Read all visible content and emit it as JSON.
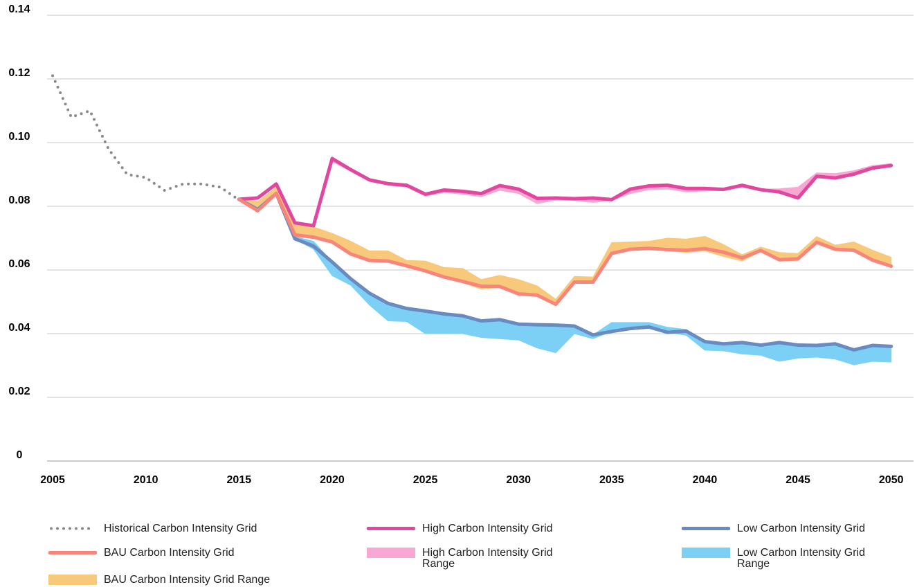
{
  "chart_data": {
    "type": "line",
    "x": [
      2015,
      2016,
      2017,
      2018,
      2019,
      2020,
      2021,
      2022,
      2023,
      2024,
      2025,
      2026,
      2027,
      2028,
      2029,
      2030,
      2031,
      2032,
      2033,
      2034,
      2035,
      2036,
      2037,
      2038,
      2039,
      2040,
      2041,
      2042,
      2043,
      2044,
      2045,
      2046,
      2047,
      2048,
      2049,
      2050
    ],
    "xlim": [
      2004.7,
      2051.2
    ],
    "xticks": [
      2005,
      2010,
      2015,
      2020,
      2025,
      2030,
      2035,
      2040,
      2045,
      2050
    ],
    "ylim": [
      0,
      0.14
    ],
    "yticks": [
      0,
      0.02,
      0.04,
      0.06,
      0.08,
      {
        "value": 0.1,
        "label": "0.10"
      },
      0.12,
      0.14
    ],
    "grid": true,
    "series": [
      {
        "name": "Historical Carbon Intensity Grid",
        "color": "#8a8a8a",
        "style": "dotted",
        "x": [
          2005,
          2006,
          2007,
          2008,
          2009,
          2010,
          2011,
          2012,
          2013,
          2014,
          2015
        ],
        "values": [
          0.121,
          0.108,
          0.11,
          0.098,
          0.09,
          0.089,
          0.085,
          0.087,
          0.087,
          0.086,
          0.082
        ]
      },
      {
        "name": "High Carbon Intensity Grid",
        "color": "#e0479e",
        "values": [
          0.0822,
          0.0826,
          0.087,
          0.0748,
          0.0739,
          0.095,
          0.0915,
          0.0883,
          0.0871,
          0.0866,
          0.0838,
          0.0851,
          0.0847,
          0.084,
          0.0865,
          0.0854,
          0.0825,
          0.0826,
          0.0824,
          0.0826,
          0.0821,
          0.0854,
          0.0864,
          0.0866,
          0.0856,
          0.0856,
          0.0853,
          0.0866,
          0.0852,
          0.0845,
          0.0826,
          0.0894,
          0.0889,
          0.0901,
          0.092,
          0.0928
        ]
      },
      {
        "name": "Low Carbon Intensity Grid",
        "color": "#6a8bbf",
        "values": [
          0.0822,
          0.079,
          0.084,
          0.0698,
          0.0675,
          0.0625,
          0.0572,
          0.0527,
          0.0495,
          0.0479,
          0.0471,
          0.0462,
          0.0456,
          0.044,
          0.0444,
          0.043,
          0.0428,
          0.0427,
          0.0424,
          0.0396,
          0.0407,
          0.0416,
          0.0421,
          0.0404,
          0.0408,
          0.0375,
          0.0368,
          0.0372,
          0.0364,
          0.0372,
          0.0364,
          0.0363,
          0.0368,
          0.0349,
          0.0363,
          0.036
        ]
      },
      {
        "name": "BAU Carbon Intensity Grid",
        "color": "#f7857a",
        "values": [
          0.0822,
          0.0786,
          0.084,
          0.071,
          0.0703,
          0.0688,
          0.065,
          0.063,
          0.0628,
          0.0613,
          0.0597,
          0.0578,
          0.0564,
          0.0549,
          0.0548,
          0.0525,
          0.0521,
          0.0492,
          0.0562,
          0.0562,
          0.0652,
          0.0665,
          0.0668,
          0.0664,
          0.0662,
          0.0667,
          0.0656,
          0.0638,
          0.0661,
          0.0632,
          0.0635,
          0.0687,
          0.0665,
          0.0662,
          0.0631,
          0.0612
        ]
      },
      {
        "name": "High Carbon Intensity Grid Range",
        "color": "#f9a8d4",
        "style": "range",
        "high": [
          0.0822,
          0.0826,
          0.087,
          0.075,
          0.0741,
          0.0952,
          0.0917,
          0.0885,
          0.0873,
          0.0868,
          0.084,
          0.0853,
          0.0849,
          0.0842,
          0.0867,
          0.0856,
          0.0827,
          0.0828,
          0.0826,
          0.0828,
          0.0823,
          0.0856,
          0.0866,
          0.0868,
          0.0858,
          0.0858,
          0.0855,
          0.0868,
          0.0854,
          0.0855,
          0.086,
          0.0905,
          0.0903,
          0.0912,
          0.0928,
          0.0934
        ],
        "low": [
          0.0822,
          0.0826,
          0.087,
          0.0748,
          0.0739,
          0.094,
          0.091,
          0.0878,
          0.0866,
          0.086,
          0.0832,
          0.0843,
          0.0838,
          0.083,
          0.085,
          0.084,
          0.0808,
          0.082,
          0.0818,
          0.0812,
          0.0818,
          0.084,
          0.0852,
          0.0854,
          0.0845,
          0.0848,
          0.085,
          0.086,
          0.0848,
          0.0842,
          0.0824,
          0.089,
          0.0886,
          0.0898,
          0.0916,
          0.0924
        ]
      },
      {
        "name": "Low Carbon Intensity Grid Range",
        "color": "#7dd0f5",
        "style": "range",
        "high": [
          0.0822,
          0.079,
          0.084,
          0.0705,
          0.069,
          0.0625,
          0.0572,
          0.0527,
          0.0495,
          0.0479,
          0.0471,
          0.0462,
          0.0456,
          0.044,
          0.0444,
          0.043,
          0.0428,
          0.0427,
          0.0424,
          0.0396,
          0.0435,
          0.0435,
          0.0435,
          0.042,
          0.0413,
          0.0375,
          0.0368,
          0.0372,
          0.0364,
          0.0372,
          0.0364,
          0.0363,
          0.0368,
          0.0349,
          0.0363,
          0.036
        ],
        "low": [
          0.0822,
          0.079,
          0.084,
          0.0698,
          0.0665,
          0.0582,
          0.0552,
          0.049,
          0.044,
          0.0438,
          0.04,
          0.04,
          0.04,
          0.0388,
          0.0384,
          0.038,
          0.0355,
          0.034,
          0.04,
          0.0384,
          0.0407,
          0.0416,
          0.0421,
          0.0404,
          0.0395,
          0.0348,
          0.0346,
          0.0336,
          0.0332,
          0.0313,
          0.0323,
          0.0326,
          0.032,
          0.0302,
          0.0313,
          0.0311
        ]
      },
      {
        "name": "BAU Carbon Intensity Grid Range",
        "color": "#f8c97a",
        "style": "range",
        "high": [
          0.0822,
          0.0815,
          0.086,
          0.0745,
          0.0735,
          0.0715,
          0.069,
          0.066,
          0.066,
          0.063,
          0.0628,
          0.0608,
          0.0605,
          0.057,
          0.0583,
          0.057,
          0.055,
          0.0508,
          0.058,
          0.0578,
          0.0686,
          0.0688,
          0.069,
          0.07,
          0.0697,
          0.0706,
          0.068,
          0.0648,
          0.0672,
          0.0655,
          0.0652,
          0.0705,
          0.0678,
          0.0688,
          0.0662,
          0.064
        ],
        "low": [
          0.0822,
          0.0786,
          0.0835,
          0.0705,
          0.07,
          0.0685,
          0.0648,
          0.0628,
          0.0625,
          0.061,
          0.0595,
          0.0575,
          0.056,
          0.054,
          0.0545,
          0.0522,
          0.0518,
          0.049,
          0.056,
          0.056,
          0.065,
          0.0663,
          0.0665,
          0.066,
          0.0655,
          0.066,
          0.0642,
          0.0628,
          0.0658,
          0.0628,
          0.063,
          0.0683,
          0.0662,
          0.066,
          0.0628,
          0.061
        ]
      }
    ]
  }
}
